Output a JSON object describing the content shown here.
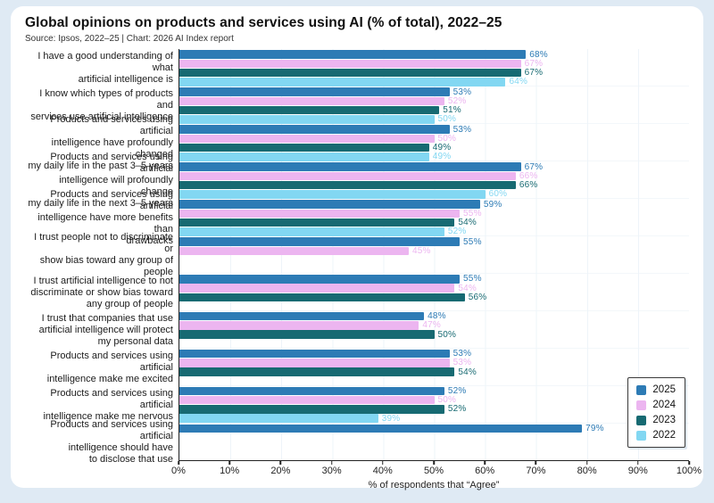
{
  "page": {
    "title": "Global opinions on products and services using AI (% of total), 2022–25",
    "source_line": "Source: Ipsos, 2022–25 | Chart: 2026 AI Index report"
  },
  "chart_data": {
    "type": "bar",
    "orientation": "horizontal",
    "title": "Global opinions on products and services using AI (% of total), 2022–25",
    "source": "Source: Ipsos, 2022–25 | Chart: 2026 AI Index report",
    "xlabel": "% of respondents that “Agree”",
    "xlim": [
      0,
      100
    ],
    "xtick_labels": [
      "0%",
      "10%",
      "20%",
      "30%",
      "40%",
      "50%",
      "60%",
      "70%",
      "80%",
      "90%",
      "100%"
    ],
    "grid": "faint vertical gridlines every 10%",
    "legend_position": "bottom-right box",
    "series_order": [
      "2025",
      "2024",
      "2023",
      "2022"
    ],
    "colors": {
      "2025": "#2D7BB5",
      "2024": "#ECB5F0",
      "2023": "#176A72",
      "2022": "#82D7F2"
    },
    "categories": [
      {
        "label_lines": [
          "I have a good understanding of what",
          "artificial intelligence is"
        ],
        "values": {
          "2025": 68,
          "2024": 67,
          "2023": 67,
          "2022": 64
        }
      },
      {
        "label_lines": [
          "I know which types of products and",
          "services use artificial intelligence"
        ],
        "values": {
          "2025": 53,
          "2024": 52,
          "2023": 51,
          "2022": 50
        }
      },
      {
        "label_lines": [
          "Products and services using artificial",
          "intelligence have profoundly changed",
          "my daily life in the past 3–5 years"
        ],
        "values": {
          "2025": 53,
          "2024": 50,
          "2023": 49,
          "2022": 49
        }
      },
      {
        "label_lines": [
          "Products and services using artificial",
          "intelligence will profoundly change",
          "my daily life in the next 3–5 years"
        ],
        "values": {
          "2025": 67,
          "2024": 66,
          "2023": 66,
          "2022": 60
        }
      },
      {
        "label_lines": [
          "Products and services using artificial",
          "intelligence have more benefits than",
          "drawbacks"
        ],
        "values": {
          "2025": 59,
          "2024": 55,
          "2023": 54,
          "2022": 52
        }
      },
      {
        "label_lines": [
          "I trust people not to discriminate or",
          "show bias toward any group of people"
        ],
        "values": {
          "2025": 55,
          "2024": 45,
          "2023": null,
          "2022": null
        }
      },
      {
        "label_lines": [
          "I trust artificial intelligence to not",
          "discriminate or show bias toward",
          "any group of people"
        ],
        "values": {
          "2025": 55,
          "2024": 54,
          "2023": 56,
          "2022": null
        }
      },
      {
        "label_lines": [
          "I trust that companies that use",
          "artificial intelligence will protect",
          "my personal data"
        ],
        "values": {
          "2025": 48,
          "2024": 47,
          "2023": 50,
          "2022": null
        }
      },
      {
        "label_lines": [
          "Products and services using artificial",
          "intelligence make me excited"
        ],
        "values": {
          "2025": 53,
          "2024": 53,
          "2023": 54,
          "2022": null
        }
      },
      {
        "label_lines": [
          "Products and services using artificial",
          "intelligence make me nervous"
        ],
        "values": {
          "2025": 52,
          "2024": 50,
          "2023": 52,
          "2022": 39
        }
      },
      {
        "label_lines": [
          "Products and services using artificial",
          "intelligence should have",
          "to disclose that use"
        ],
        "values": {
          "2025": 79,
          "2024": null,
          "2023": null,
          "2022": null
        }
      }
    ]
  }
}
